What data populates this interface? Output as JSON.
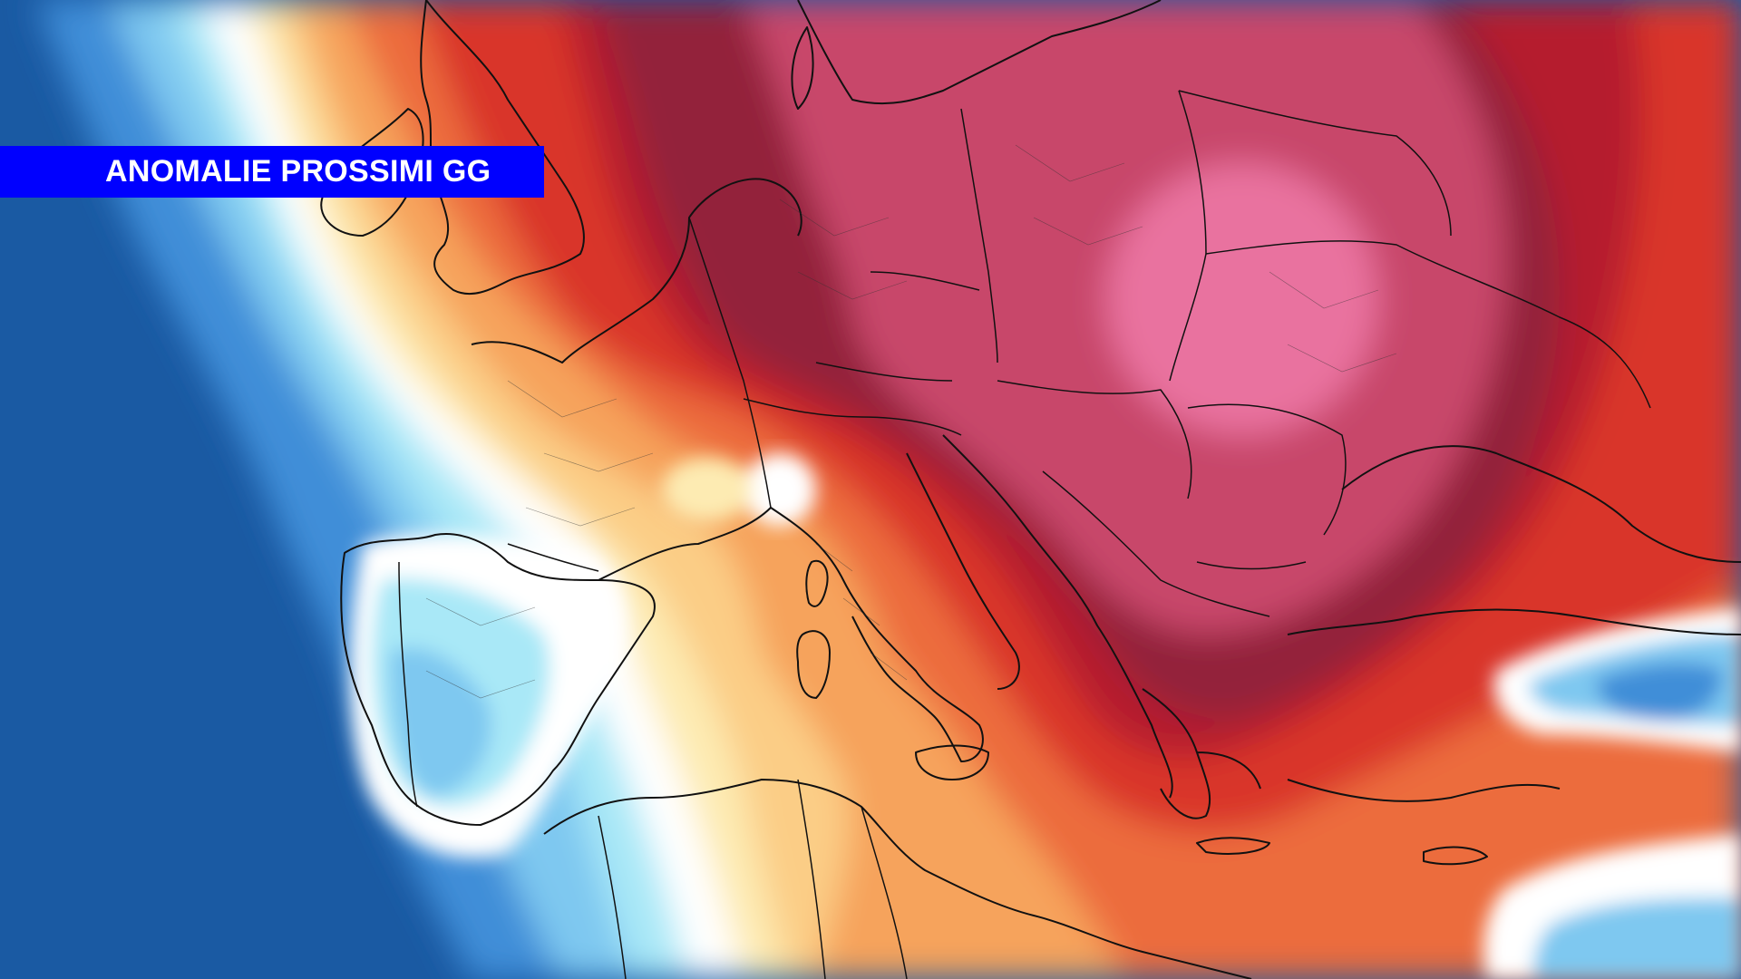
{
  "banner": {
    "title": "ANOMALIE PROSSIMI GG"
  },
  "map": {
    "type": "temperature-anomaly-forecast",
    "region": "Europe and Mediterranean",
    "colors": {
      "ocean_deep": "#1a5aa3",
      "cold_mid": "#3f8ed8",
      "cold_light": "#7ec8f0",
      "cold_pale": "#a9e8f7",
      "neutral": "#ffffff",
      "warm_pale": "#fdebb2",
      "warm_light": "#fbcd86",
      "warm_mid": "#f6a35c",
      "hot": "#ec6c3c",
      "very_hot": "#d9352b",
      "extreme": "#b51e2e",
      "extreme_dark": "#93223b",
      "peak_pink": "#c8476a",
      "peak_light": "#e9729f",
      "banner_blue": "#0000ff",
      "border_line": "#111111"
    }
  }
}
